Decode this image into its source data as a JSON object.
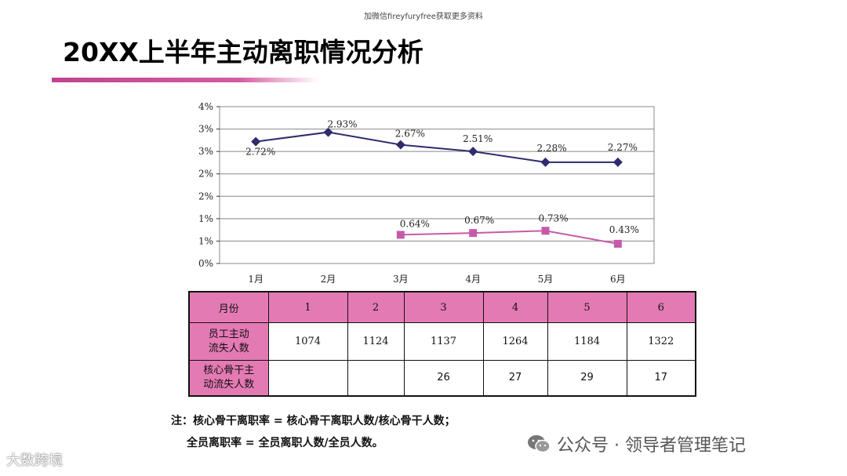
{
  "top_note": "加微信fireyfuryfree获取更多资料",
  "title": "20XX上半年主动离职情况分析",
  "colors": {
    "accent": "#d65aa1",
    "series1": "#2e2c6e",
    "series2": "#c75aa8",
    "header_fill": "#e47ab4"
  },
  "chart_data": {
    "type": "line",
    "categories": [
      "1月",
      "2月",
      "3月",
      "4月",
      "5月",
      "6月"
    ],
    "y_tick_labels": [
      "0%",
      "1%",
      "1%",
      "2%",
      "2%",
      "3%",
      "3%",
      "4%"
    ],
    "ylim": [
      0,
      3.5
    ],
    "grid": true,
    "series": [
      {
        "values": [
          2.72,
          2.93,
          2.67,
          2.51,
          2.28,
          2.27
        ],
        "labels": [
          "2.72%",
          "2.93%",
          "2.67%",
          "2.51%",
          "2.28%",
          "2.27%"
        ],
        "plotted_values": [
          2.72,
          2.93,
          2.65,
          2.5,
          2.26,
          2.26
        ],
        "marker": "diamond",
        "color": "#2e2c6e"
      },
      {
        "values": [
          null,
          null,
          0.64,
          0.67,
          0.73,
          0.43
        ],
        "labels": [
          "",
          "",
          "0.64%",
          "0.67%",
          "0.73%",
          "0.43%"
        ],
        "plotted_values": [
          null,
          null,
          0.64,
          0.68,
          0.73,
          0.44
        ],
        "marker": "square",
        "color": "#c75aa8"
      }
    ]
  },
  "table": {
    "header": [
      "月份",
      "1",
      "2",
      "3",
      "4",
      "5",
      "6"
    ],
    "row1_label_line1": "员工主动",
    "row1_label_line2": "流失人数",
    "row1_values": [
      "1074",
      "1124",
      "1137",
      "1264",
      "1184",
      "1322"
    ],
    "row2_label_line1": "核心骨干主",
    "row2_label_line2": "动流失人数",
    "row2_values": [
      "",
      "",
      "26",
      "27",
      "29",
      "17"
    ]
  },
  "notes": {
    "line1": "注：核心骨干离职率 = 核心骨干离职人数/核心骨干人数；",
    "line2": "全员离职率 = 全员离职人数/全员人数。"
  },
  "watermark_left": "大数跨境",
  "watermark_right": "公众号 · 领导者管理笔记",
  "watermark_icon": "wechat-icon"
}
